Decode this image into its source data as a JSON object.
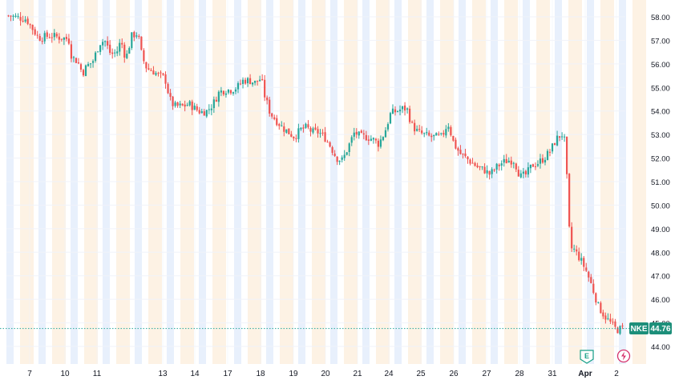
{
  "chart_data": {
    "type": "candlestick",
    "symbol": "NKE",
    "last_price": "44.76",
    "y_axis": {
      "range": [
        43.7,
        58.5
      ],
      "ticks": [
        "58.00",
        "57.00",
        "56.00",
        "55.00",
        "54.00",
        "53.00",
        "52.00",
        "51.00",
        "50.00",
        "49.00",
        "48.00",
        "47.00",
        "46.00",
        "45.00",
        "44.00"
      ]
    },
    "x_axis": {
      "ticks": [
        "7",
        "10",
        "11",
        "13",
        "14",
        "17",
        "18",
        "19",
        "20",
        "21",
        "24",
        "25",
        "26",
        "27",
        "28",
        "31",
        "Apr",
        "2"
      ]
    },
    "grid": true,
    "session_shading": true,
    "earnings_marker": "E",
    "close_path": [
      [
        0,
        58.05
      ],
      [
        3,
        57.9
      ],
      [
        5,
        57.1
      ],
      [
        7,
        57.2
      ],
      [
        9,
        57.1
      ],
      [
        10,
        57.05
      ],
      [
        10.5,
        56.3
      ],
      [
        11.5,
        56.1
      ],
      [
        12.3,
        55.6
      ],
      [
        13,
        55.9
      ],
      [
        14,
        56.1
      ],
      [
        15.2,
        56.9
      ],
      [
        16,
        57.0
      ],
      [
        17,
        56.4
      ],
      [
        18,
        56.5
      ],
      [
        18.7,
        57.0
      ],
      [
        19.5,
        56.2
      ],
      [
        20.5,
        57.2
      ],
      [
        21.5,
        57.3
      ],
      [
        22.2,
        56.3
      ],
      [
        23,
        55.8
      ],
      [
        24,
        55.7
      ],
      [
        25,
        55.5
      ],
      [
        26,
        55.4
      ],
      [
        26.8,
        54.5
      ],
      [
        27.5,
        54.2
      ],
      [
        29,
        54.2
      ],
      [
        30,
        54.3
      ],
      [
        31,
        54.1
      ],
      [
        32,
        53.95
      ],
      [
        33,
        54.0
      ],
      [
        34,
        54.3
      ],
      [
        35,
        54.8
      ],
      [
        36,
        54.9
      ],
      [
        37,
        54.9
      ],
      [
        38,
        55.0
      ],
      [
        39,
        55.3
      ],
      [
        40,
        55.3
      ],
      [
        41,
        55.2
      ],
      [
        42,
        55.4
      ],
      [
        42.5,
        54.7
      ],
      [
        43.5,
        53.9
      ],
      [
        44.5,
        53.6
      ],
      [
        45.5,
        53.3
      ],
      [
        46.5,
        53.1
      ],
      [
        47.5,
        52.9
      ],
      [
        48.5,
        53.2
      ],
      [
        49.5,
        53.3
      ],
      [
        50.5,
        53.1
      ],
      [
        51.5,
        53.1
      ],
      [
        52.5,
        52.9
      ],
      [
        53.5,
        52.5
      ],
      [
        54.5,
        52.0
      ],
      [
        55.5,
        51.9
      ],
      [
        56.5,
        52.5
      ],
      [
        57.5,
        53.1
      ],
      [
        58.5,
        52.9
      ],
      [
        59.5,
        52.9
      ],
      [
        60.5,
        52.8
      ],
      [
        61.5,
        52.6
      ],
      [
        62.5,
        53.1
      ],
      [
        63.5,
        53.9
      ],
      [
        64.5,
        54.0
      ],
      [
        65.5,
        54.1
      ],
      [
        66.2,
        54.1
      ],
      [
        67,
        53.4
      ],
      [
        68,
        53.1
      ],
      [
        69,
        53.0
      ],
      [
        70,
        52.9
      ],
      [
        71,
        52.9
      ],
      [
        72,
        52.9
      ],
      [
        73,
        53.5
      ],
      [
        74,
        52.6
      ],
      [
        75,
        52.2
      ],
      [
        76,
        52.0
      ],
      [
        77,
        51.8
      ],
      [
        78,
        51.6
      ],
      [
        79,
        51.5
      ],
      [
        80,
        51.3
      ],
      [
        81,
        51.6
      ],
      [
        82,
        51.8
      ],
      [
        83,
        51.9
      ],
      [
        84,
        51.9
      ],
      [
        85,
        51.2
      ],
      [
        86,
        51.3
      ],
      [
        87,
        51.7
      ],
      [
        88,
        51.8
      ],
      [
        89,
        52.0
      ],
      [
        90,
        52.3
      ],
      [
        91,
        52.8
      ],
      [
        91.8,
        53.0
      ],
      [
        92.3,
        53.0
      ],
      [
        92.8,
        51.0
      ],
      [
        93.3,
        48.2
      ],
      [
        94,
        48.1
      ],
      [
        95,
        47.7
      ],
      [
        96,
        47.2
      ],
      [
        97,
        46.5
      ],
      [
        98,
        45.7
      ],
      [
        99,
        45.3
      ],
      [
        100,
        45.0
      ],
      [
        101,
        44.7
      ],
      [
        102,
        44.76
      ]
    ]
  },
  "colors": {
    "up": "#26a69a",
    "down": "#ef5350",
    "axis_text": "#131722",
    "grid": "#f0f3fa",
    "shade_premarket": "#e8f0fc",
    "shade_afterhours": "#fdf2e4",
    "price_label_bg": "#1d8f7a",
    "price_line": "#26a69a",
    "earnings_badge_border": "#1aa188",
    "lightning_icon": "#d6336c"
  }
}
